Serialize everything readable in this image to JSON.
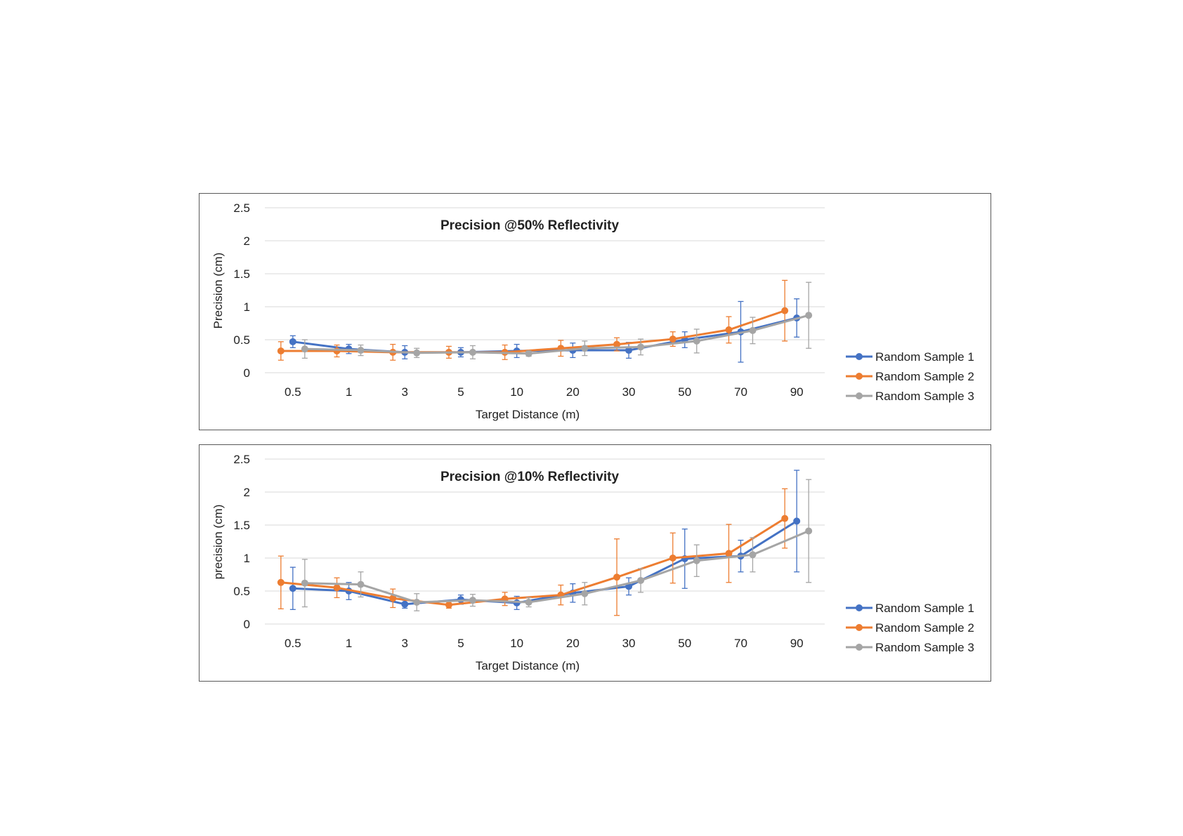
{
  "colors": {
    "sample1": "#4472c4",
    "sample2": "#ed7d31",
    "sample3": "#a5a5a5",
    "grid": "#d9d9d9",
    "frame": "#595959"
  },
  "chart_data": [
    {
      "type": "line",
      "title": "Precision @50% Reflectivity",
      "xlabel": "Target Distance (m)",
      "ylabel": "Precision (cm)",
      "categories": [
        "0.5",
        "1",
        "3",
        "5",
        "10",
        "20",
        "30",
        "50",
        "70",
        "90"
      ],
      "ylim": [
        0,
        2.5
      ],
      "yticks": [
        "0",
        "0.5",
        "1",
        "1.5",
        "2",
        "2.5"
      ],
      "grid": true,
      "legend_position": "right",
      "series": [
        {
          "name": "Random Sample 1",
          "values": [
            0.47,
            0.36,
            0.31,
            0.31,
            0.33,
            0.34,
            0.34,
            0.5,
            0.62,
            0.83
          ],
          "errors": [
            0.09,
            0.07,
            0.1,
            0.07,
            0.1,
            0.11,
            0.12,
            0.12,
            0.46,
            0.29
          ]
        },
        {
          "name": "Random Sample 2",
          "values": [
            0.33,
            0.33,
            0.31,
            0.31,
            0.31,
            0.37,
            0.43,
            0.51,
            0.65,
            0.94
          ],
          "errors": [
            0.14,
            0.09,
            0.12,
            0.09,
            0.11,
            0.12,
            0.1,
            0.11,
            0.2,
            0.46
          ]
        },
        {
          "name": "Random Sample 3",
          "values": [
            0.36,
            0.34,
            0.3,
            0.31,
            0.29,
            0.37,
            0.39,
            0.48,
            0.64,
            0.87
          ],
          "errors": [
            0.14,
            0.08,
            0.07,
            0.1,
            0.04,
            0.11,
            0.12,
            0.18,
            0.2,
            0.5
          ]
        }
      ]
    },
    {
      "type": "line",
      "title": "Precision @10% Reflectivity",
      "xlabel": "Target Distance (m)",
      "ylabel": "precision (cm)",
      "categories": [
        "0.5",
        "1",
        "3",
        "5",
        "10",
        "20",
        "30",
        "50",
        "70",
        "90"
      ],
      "ylim": [
        0,
        2.5
      ],
      "yticks": [
        "0",
        "0.5",
        "1",
        "1.5",
        "2",
        "2.5"
      ],
      "grid": true,
      "legend_position": "right",
      "series": [
        {
          "name": "Random Sample 1",
          "values": [
            0.54,
            0.5,
            0.3,
            0.37,
            0.32,
            0.47,
            0.57,
            0.99,
            1.03,
            1.56
          ],
          "errors": [
            0.32,
            0.13,
            0.06,
            0.07,
            0.1,
            0.14,
            0.13,
            0.45,
            0.24,
            0.77
          ]
        },
        {
          "name": "Random Sample 2",
          "values": [
            0.63,
            0.55,
            0.39,
            0.29,
            0.38,
            0.44,
            0.71,
            1.0,
            1.07,
            1.6
          ],
          "errors": [
            0.4,
            0.15,
            0.14,
            0.05,
            0.1,
            0.15,
            0.58,
            0.38,
            0.44,
            0.45
          ]
        },
        {
          "name": "Random Sample 3",
          "values": [
            0.62,
            0.6,
            0.33,
            0.36,
            0.33,
            0.46,
            0.66,
            0.96,
            1.05,
            1.41
          ],
          "errors": [
            0.36,
            0.19,
            0.13,
            0.09,
            0.07,
            0.17,
            0.18,
            0.24,
            0.26,
            0.78
          ]
        }
      ]
    }
  ]
}
